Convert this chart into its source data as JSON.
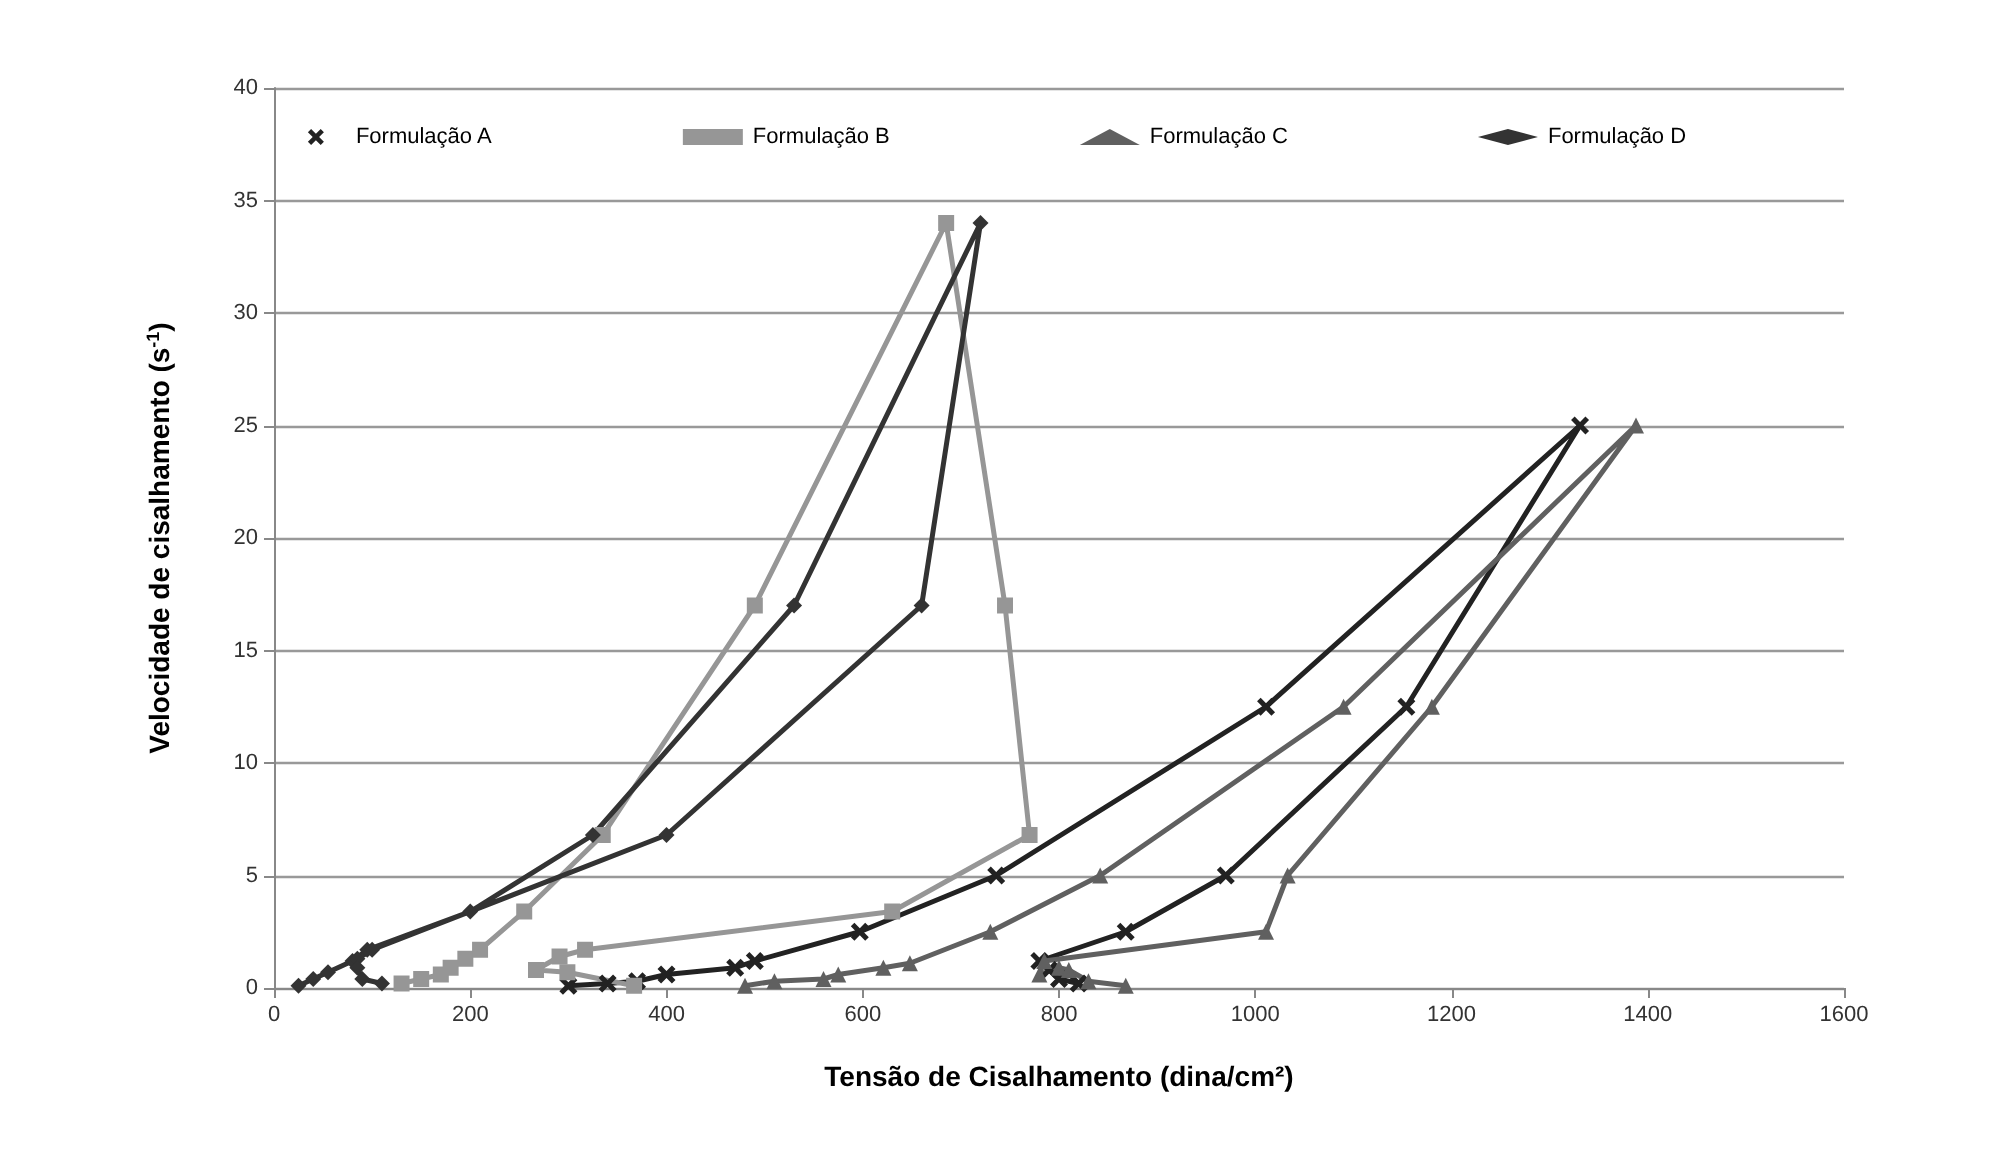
{
  "chart_data": {
    "type": "line",
    "xlabel": "Tensão de Cisalhamento (dina/cm²)",
    "ylabel": "Velocidade de cisalhamento (s$^{-1}$)",
    "xlim": [
      0,
      1600
    ],
    "xticks": [
      0,
      200,
      400,
      600,
      800,
      1000,
      1200,
      1400,
      1600
    ],
    "ylim": [
      0,
      40
    ],
    "yticks": [
      0,
      5,
      10,
      15,
      20,
      25,
      30,
      35,
      40
    ],
    "grid": "y",
    "legend": "top",
    "line_style": "solid",
    "series": [
      {
        "name": "Formulação A",
        "color": "#222222",
        "marker": "cross",
        "x": [
          300,
          340,
          370,
          400,
          470,
          490,
          597,
          736,
          1011,
          1331,
          1154,
          970,
          868,
          780,
          790,
          800,
          820
        ],
        "values": [
          0.1,
          0.2,
          0.3,
          0.6,
          0.9,
          1.2,
          2.5,
          5,
          12.5,
          25,
          12.5,
          5,
          2.5,
          1.2,
          0.8,
          0.4,
          0.2
        ]
      },
      {
        "name": "Formulação B",
        "color": "#969696",
        "marker": "square",
        "x": [
          130,
          150,
          170,
          180,
          195,
          210,
          255,
          335,
          490,
          685,
          745,
          770,
          630,
          317,
          291,
          267,
          299,
          367
        ],
        "values": [
          0.2,
          0.4,
          0.6,
          0.9,
          1.3,
          1.7,
          3.4,
          6.8,
          17,
          34,
          17,
          6.8,
          3.4,
          1.7,
          1.4,
          0.8,
          0.7,
          0.1
        ]
      },
      {
        "name": "Formulação C",
        "color": "#606060",
        "marker": "triangle",
        "x": [
          480,
          510,
          560,
          575,
          621,
          648,
          730,
          842,
          1090,
          1388,
          1180,
          1033,
          1011,
          785,
          780,
          800,
          810,
          830,
          868
        ],
        "values": [
          0.1,
          0.3,
          0.4,
          0.6,
          0.9,
          1.1,
          2.5,
          5,
          12.5,
          25,
          12.5,
          5,
          2.5,
          1.2,
          0.6,
          0.9,
          0.8,
          0.3,
          0.1
        ]
      },
      {
        "name": "Formulação D",
        "color": "#333333",
        "marker": "diamond",
        "x": [
          25,
          40,
          55,
          80,
          95,
          200,
          325,
          530,
          720,
          660,
          400,
          100,
          85,
          85,
          90,
          110
        ],
        "values": [
          0.1,
          0.4,
          0.7,
          1.2,
          1.7,
          3.4,
          6.8,
          17,
          34,
          17,
          6.8,
          1.7,
          1.3,
          0.9,
          0.4,
          0.2
        ]
      }
    ]
  }
}
